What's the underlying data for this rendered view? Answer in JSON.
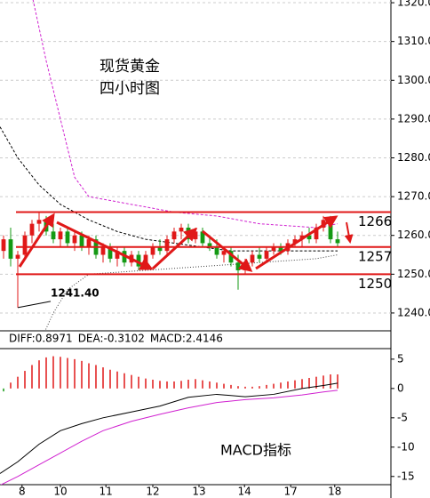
{
  "chart_data": [
    {
      "type": "candlestick",
      "annotations": [
        "现货黄金",
        "四小时图"
      ],
      "open": [
        1256,
        1259,
        1254,
        1255,
        1260,
        1263,
        1264,
        1261,
        1259,
        1261,
        1258,
        1260,
        1257,
        1259,
        1255,
        1257,
        1254,
        1256,
        1253,
        1255,
        1252,
        1255,
        1257,
        1256,
        1259,
        1261,
        1262,
        1259,
        1261,
        1258,
        1257,
        1255,
        1256,
        1253,
        1251,
        1253,
        1255,
        1254,
        1256,
        1257,
        1256,
        1258,
        1259,
        1260,
        1259,
        1262,
        1264,
        1259
      ],
      "high": [
        1260,
        1262,
        1256,
        1261,
        1264,
        1266,
        1265,
        1263,
        1262,
        1262,
        1261,
        1261,
        1260,
        1260,
        1258,
        1258,
        1257,
        1257,
        1256,
        1256,
        1256,
        1258,
        1259,
        1260,
        1262,
        1263,
        1263,
        1262,
        1262,
        1260,
        1259,
        1257,
        1257,
        1255,
        1254,
        1256,
        1257,
        1257,
        1258,
        1258,
        1259,
        1260,
        1261,
        1262,
        1263,
        1265,
        1265,
        1261
      ],
      "low": [
        1254,
        1252,
        1241.4,
        1254,
        1258,
        1261,
        1260,
        1258,
        1257,
        1257,
        1256,
        1256,
        1255,
        1254,
        1253,
        1253,
        1252,
        1252,
        1252,
        1251,
        1251,
        1254,
        1255,
        1255,
        1258,
        1259,
        1258,
        1258,
        1257,
        1256,
        1254,
        1253,
        1252,
        1246,
        1250,
        1252,
        1253,
        1253,
        1255,
        1255,
        1255,
        1257,
        1257,
        1258,
        1258,
        1261,
        1258,
        1257
      ],
      "close": [
        1259,
        1254,
        1255,
        1260,
        1263,
        1264,
        1261,
        1259,
        1261,
        1258,
        1260,
        1257,
        1259,
        1255,
        1257,
        1254,
        1256,
        1253,
        1255,
        1252,
        1255,
        1257,
        1256,
        1259,
        1261,
        1262,
        1259,
        1261,
        1258,
        1257,
        1255,
        1256,
        1253,
        1251,
        1253,
        1255,
        1254,
        1256,
        1257,
        1256,
        1258,
        1259,
        1260,
        1259,
        1262,
        1264,
        1259,
        1258
      ],
      "up_color": "#e01818",
      "down_color": "#149a14",
      "xlim": [
        -0.5,
        54.5
      ],
      "ylim": [
        1235.4,
        1320.7
      ],
      "yticks": [
        {
          "value": 1320,
          "label": "1320.00"
        },
        {
          "value": 1310,
          "label": "1310.00"
        },
        {
          "value": 1300,
          "label": "1300.00"
        },
        {
          "value": 1290,
          "label": "1290.00"
        },
        {
          "value": 1280,
          "label": "1280.00"
        },
        {
          "value": 1270,
          "label": "1270.00"
        },
        {
          "value": 1260,
          "label": "1260.00"
        },
        {
          "value": 1250,
          "label": "1250.00"
        },
        {
          "value": 1240,
          "label": "1240.00"
        }
      ],
      "grid": true,
      "lines": [
        {
          "color": "#000000",
          "dash": "3,2",
          "x": [
            -0.5,
            2,
            5,
            8,
            12,
            16,
            20,
            26,
            32,
            38,
            44,
            47
          ],
          "values": [
            1288,
            1280,
            1273,
            1268,
            1264,
            1261,
            1259,
            1257.5,
            1256,
            1256,
            1256,
            1256
          ]
        },
        {
          "color": "#d020d0",
          "dash": "3,2",
          "x": [
            4,
            6,
            8,
            10,
            12,
            18,
            24,
            30,
            36,
            44,
            47
          ],
          "values": [
            1322,
            1305,
            1290,
            1275,
            1270,
            1268,
            1266,
            1265,
            1263,
            1262,
            1263
          ]
        },
        {
          "color": "#404040",
          "dash": "1,2",
          "x": [
            5,
            7,
            9,
            12,
            20,
            28,
            36,
            44,
            47
          ],
          "values": [
            1232,
            1240,
            1246,
            1250,
            1251,
            1252,
            1253,
            1254,
            1255
          ]
        }
      ],
      "levels": [
        {
          "value": 1266,
          "label": "1266"
        },
        {
          "value": 1257,
          "label": "1257"
        },
        {
          "value": 1250,
          "label": "1250"
        }
      ],
      "low_label": {
        "value": 1241.4,
        "label": "1241.40"
      }
    },
    {
      "type": "macd",
      "header": [
        {
          "text": "DIFF:0.8971",
          "color": "#000000"
        },
        {
          "text": "DEA:-0.3102",
          "color": "#c020c0"
        },
        {
          "text": "MACD:2.4146",
          "color": "#6a2a8a"
        }
      ],
      "annotation": "MACD指标",
      "histogram": [
        -0.5,
        1,
        2,
        3,
        4,
        4.8,
        5.3,
        5.5,
        5.4,
        5.2,
        5,
        4.7,
        4.3,
        4,
        3.6,
        3.2,
        2.9,
        2.6,
        2.3,
        2,
        1.7,
        1.5,
        1.3,
        1.2,
        1.2,
        1.3,
        1.5,
        1.6,
        1.4,
        1.2,
        1,
        0.8,
        0.6,
        0.4,
        0.3,
        0.3,
        0.4,
        0.6,
        0.8,
        1,
        1.2,
        1.4,
        1.6,
        1.8,
        2,
        2.2,
        2.4,
        2.4
      ],
      "up_color": "#e01818",
      "down_color": "#149a14",
      "lines": [
        {
          "color": "#000000",
          "x": [
            -0.5,
            2,
            5,
            8,
            11,
            14,
            18,
            22,
            26,
            30,
            34,
            38,
            42,
            45,
            47
          ],
          "values": [
            -14.5,
            -12.5,
            -9.5,
            -7.2,
            -6,
            -5,
            -4,
            -3,
            -1.5,
            -1,
            -1.4,
            -1,
            0,
            0.5,
            0.9
          ]
        },
        {
          "color": "#d020d0",
          "x": [
            -0.5,
            2,
            5,
            8,
            11,
            14,
            18,
            22,
            26,
            30,
            34,
            38,
            42,
            45,
            47
          ],
          "values": [
            -16.5,
            -15,
            -13,
            -11,
            -9,
            -7.2,
            -5.6,
            -4.4,
            -3.3,
            -2.4,
            -1.9,
            -1.6,
            -1.1,
            -0.6,
            -0.3
          ]
        }
      ],
      "xlim": [
        -0.5,
        54.5
      ],
      "xticks": [
        {
          "value": 2.6,
          "label": "8"
        },
        {
          "value": 8,
          "label": "10"
        },
        {
          "value": 14.4,
          "label": "11"
        },
        {
          "value": 21,
          "label": "12"
        },
        {
          "value": 27.5,
          "label": "13"
        },
        {
          "value": 33.9,
          "label": "14"
        },
        {
          "value": 40.4,
          "label": "17"
        },
        {
          "value": 46.6,
          "label": "18"
        }
      ],
      "ylim": [
        -16.4,
        6.8
      ],
      "yticks": [
        5,
        0,
        -5,
        -10,
        -15
      ]
    }
  ]
}
